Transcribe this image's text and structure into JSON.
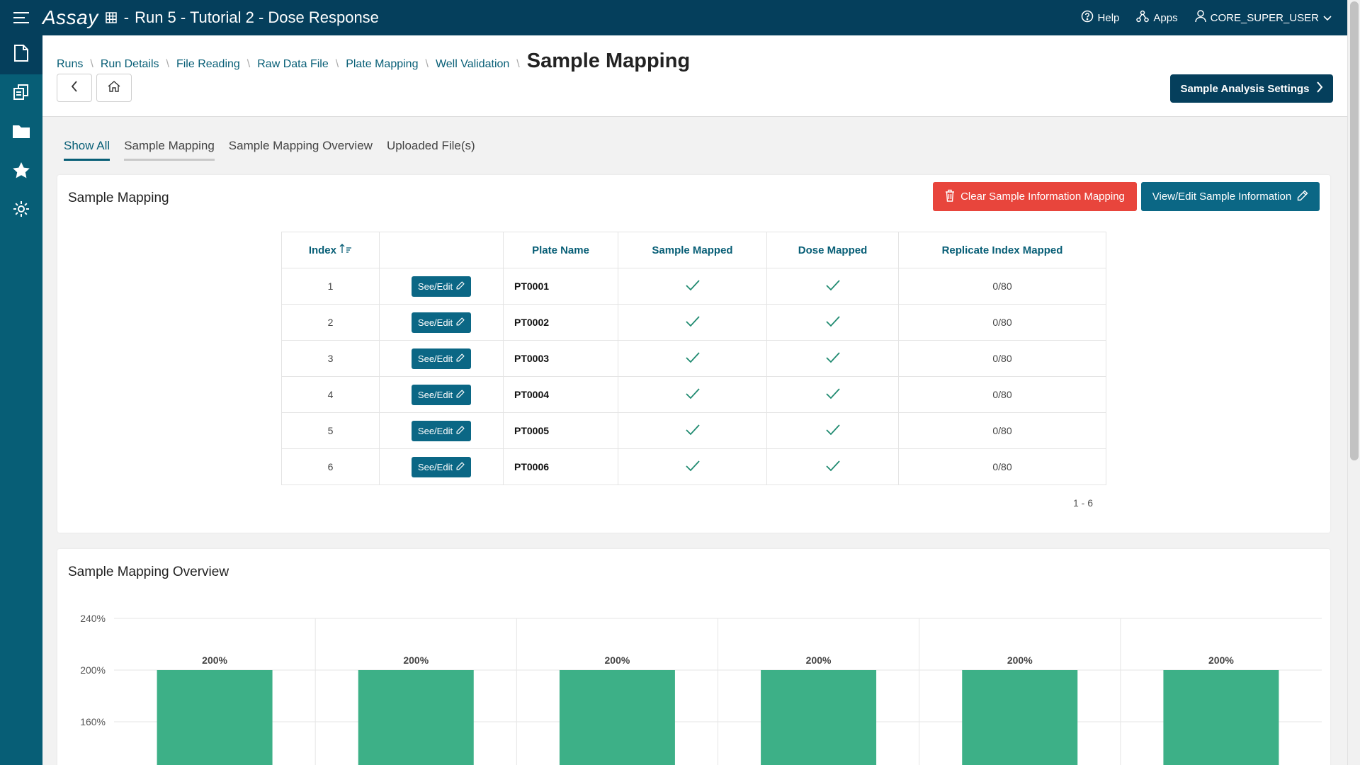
{
  "topbar": {
    "brand": "Assay",
    "separator": "-",
    "title": "Run 5 - Tutorial 2 - Dose Response",
    "help": "Help",
    "apps": "Apps",
    "user": "CORE_SUPER_USER"
  },
  "sidebar": {
    "items": [
      "document-icon",
      "copy-icon",
      "folder-icon",
      "star-icon",
      "settings-icon"
    ]
  },
  "breadcrumb": {
    "links": [
      "Runs",
      "Run Details",
      "File Reading",
      "Raw Data File",
      "Plate Mapping",
      "Well Validation"
    ],
    "current": "Sample Mapping"
  },
  "header": {
    "settings_button": "Sample Analysis Settings"
  },
  "tabs": [
    "Show All",
    "Sample Mapping",
    "Sample Mapping Overview",
    "Uploaded File(s)"
  ],
  "mapping_card": {
    "title": "Sample Mapping",
    "clear_button": "Clear Sample Information Mapping",
    "view_button": "View/Edit Sample Information",
    "columns": [
      "Index",
      "",
      "Plate Name",
      "Sample Mapped",
      "Dose Mapped",
      "Replicate Index Mapped"
    ],
    "see_edit_label": "See/Edit",
    "rows": [
      {
        "index": "1",
        "plate": "PT0001",
        "replicate": "0/80"
      },
      {
        "index": "2",
        "plate": "PT0002",
        "replicate": "0/80"
      },
      {
        "index": "3",
        "plate": "PT0003",
        "replicate": "0/80"
      },
      {
        "index": "4",
        "plate": "PT0004",
        "replicate": "0/80"
      },
      {
        "index": "5",
        "plate": "PT0005",
        "replicate": "0/80"
      },
      {
        "index": "6",
        "plate": "PT0006",
        "replicate": "0/80"
      }
    ],
    "pager": "1 - 6"
  },
  "overview_card": {
    "title": "Sample Mapping Overview"
  },
  "colors": {
    "accent": "#075e76",
    "bar": "#3db087",
    "danger": "#e8453c",
    "topbar": "#053f5c"
  },
  "chart_data": {
    "type": "bar",
    "categories": [
      "",
      "",
      "",
      "",
      "",
      ""
    ],
    "values": [
      200,
      200,
      200,
      200,
      200,
      200
    ],
    "data_labels": [
      "200%",
      "200%",
      "200%",
      "200%",
      "200%",
      "200%"
    ],
    "y_ticks": [
      "240%",
      "200%",
      "160%"
    ],
    "y_tick_values": [
      240,
      200,
      160
    ],
    "ylim": [
      0,
      240
    ],
    "grid": true
  }
}
